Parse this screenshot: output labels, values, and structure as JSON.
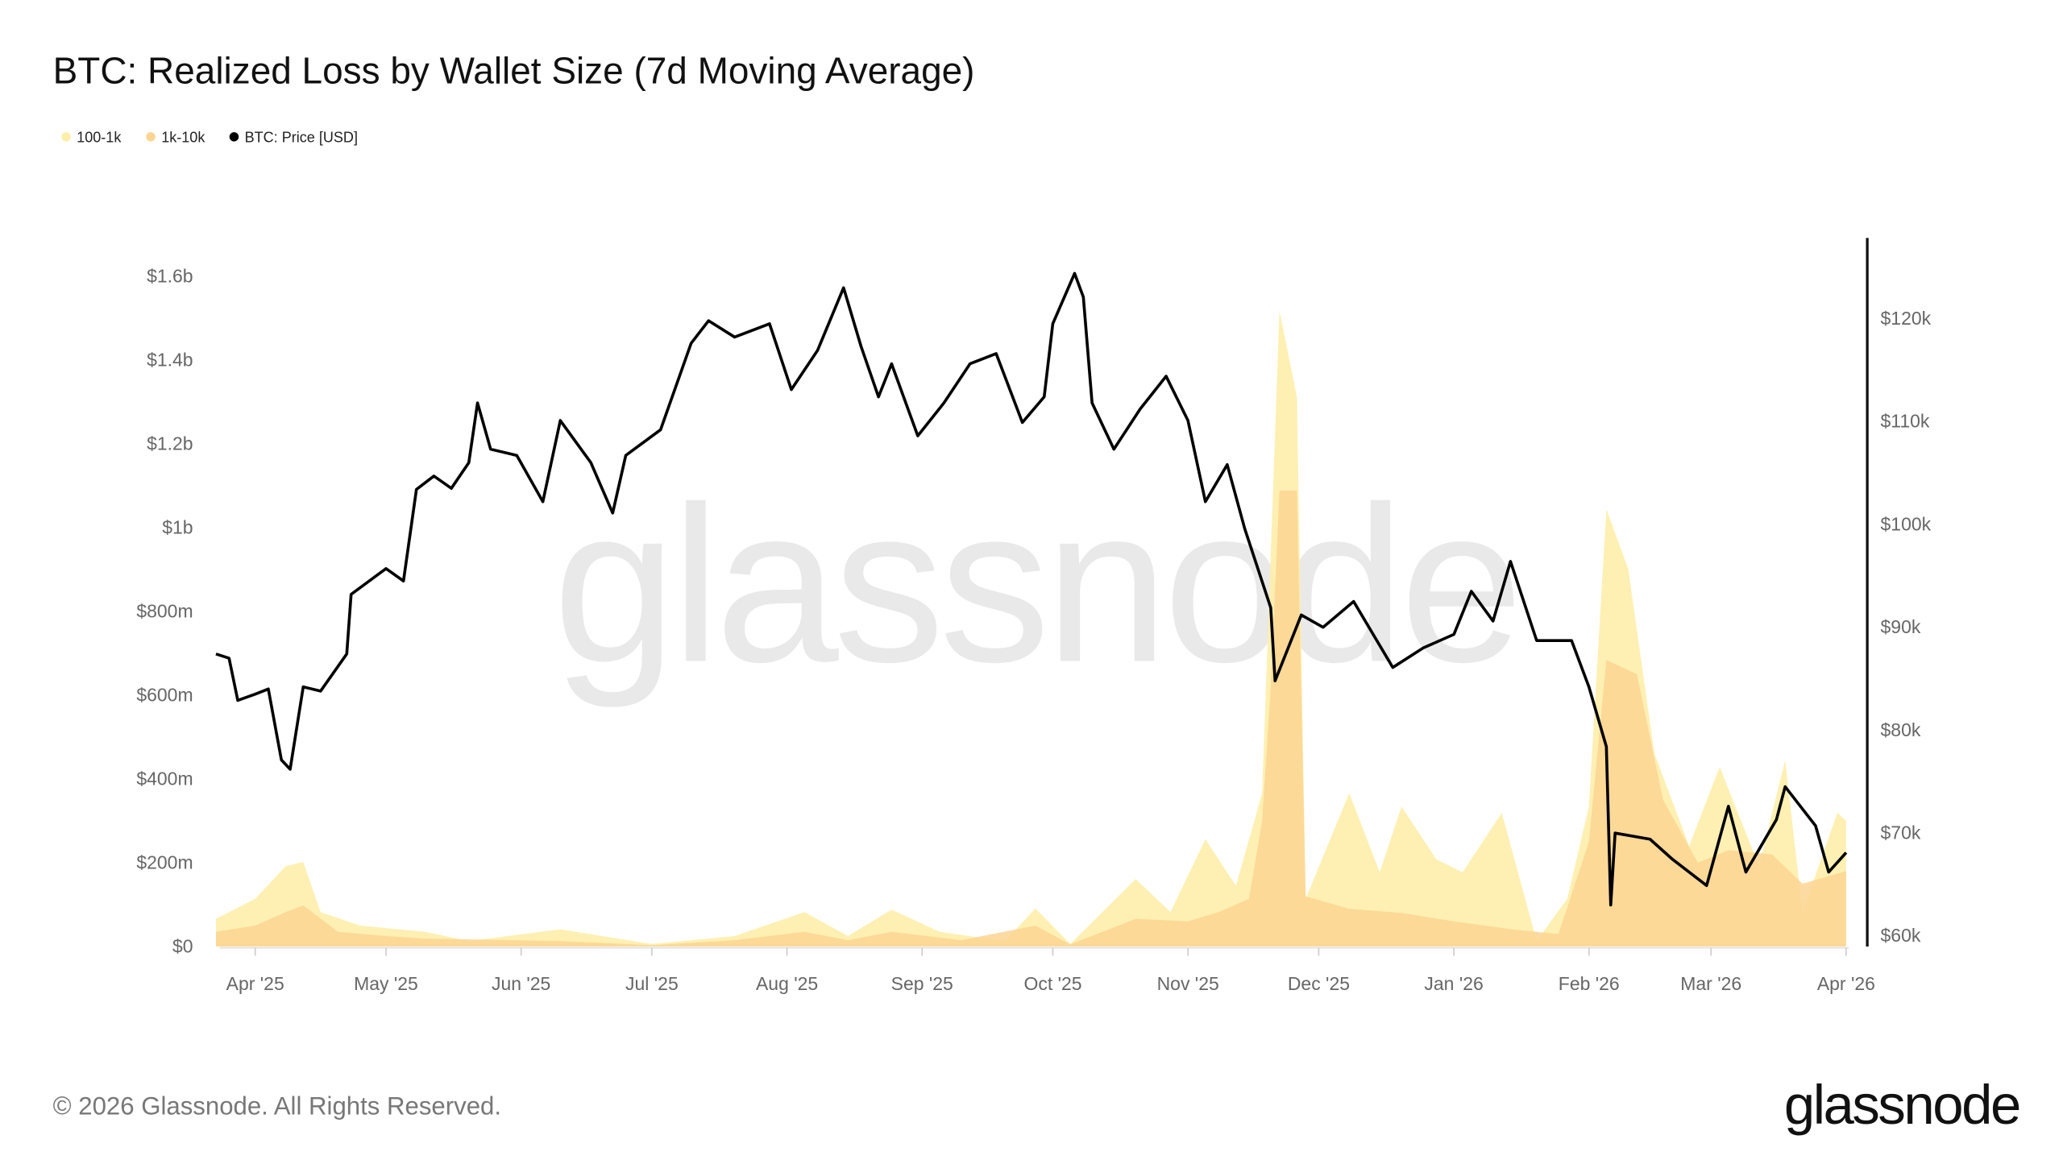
{
  "title": "BTC: Realized Loss by Wallet Size (7d Moving Average)",
  "footer": "© 2026 Glassnode. All Rights Reserved.",
  "logo_text": "glassnode",
  "watermark": "glassnode",
  "chart_data": {
    "type": "area",
    "title": "BTC: Realized Loss by Wallet Size (7d Moving Average)",
    "legend_position": "top-left",
    "grid": false,
    "x_range": [
      "2025-03-23",
      "2026-04-01"
    ],
    "x_tick_labels": [
      "Apr '25",
      "May '25",
      "Jun '25",
      "Jul '25",
      "Aug '25",
      "Sep '25",
      "Oct '25",
      "Nov '25",
      "Dec '25",
      "Jan '26",
      "Feb '26",
      "Mar '26",
      "Apr '26"
    ],
    "x_tick_dates": [
      "2025-04-01",
      "2025-05-01",
      "2025-06-01",
      "2025-07-01",
      "2025-08-01",
      "2025-09-01",
      "2025-10-01",
      "2025-11-01",
      "2025-12-01",
      "2026-01-01",
      "2026-02-01",
      "2026-03-01",
      "2026-04-01"
    ],
    "y_left": {
      "range_millions": [
        0,
        1600
      ],
      "tick_values": [
        0,
        200,
        400,
        600,
        800,
        1000,
        1200,
        1400,
        1600
      ],
      "tick_labels": [
        "$0",
        "$200m",
        "$400m",
        "$600m",
        "$800m",
        "$1b",
        "$1.2b",
        "$1.4b",
        "$1.6b"
      ]
    },
    "y_right": {
      "range": [
        60000,
        120000
      ],
      "tick_values": [
        60000,
        70000,
        80000,
        90000,
        100000,
        110000,
        120000
      ],
      "tick_labels": [
        "$60k",
        "$70k",
        "$80k",
        "$90k",
        "$100k",
        "$110k",
        "$120k"
      ]
    },
    "series": [
      {
        "name": "100-1k",
        "axis": "left",
        "color": "#fdeeaa",
        "kind": "area",
        "points": [
          [
            "2025-03-23",
            66
          ],
          [
            "2025-04-01",
            114
          ],
          [
            "2025-04-08",
            192
          ],
          [
            "2025-04-12",
            202
          ],
          [
            "2025-04-16",
            82
          ],
          [
            "2025-04-25",
            50
          ],
          [
            "2025-05-10",
            35
          ],
          [
            "2025-05-20",
            13
          ],
          [
            "2025-06-10",
            41
          ],
          [
            "2025-07-01",
            6
          ],
          [
            "2025-07-20",
            25
          ],
          [
            "2025-08-05",
            82
          ],
          [
            "2025-08-15",
            25
          ],
          [
            "2025-08-25",
            88
          ],
          [
            "2025-09-05",
            35
          ],
          [
            "2025-09-20",
            13
          ],
          [
            "2025-09-27",
            91
          ],
          [
            "2025-10-05",
            6
          ],
          [
            "2025-10-20",
            161
          ],
          [
            "2025-10-28",
            82
          ],
          [
            "2025-11-05",
            256
          ],
          [
            "2025-11-12",
            145
          ],
          [
            "2025-11-18",
            366
          ],
          [
            "2025-11-22",
            1517
          ],
          [
            "2025-11-26",
            1312
          ],
          [
            "2025-11-28",
            114
          ],
          [
            "2025-12-08",
            366
          ],
          [
            "2025-12-15",
            177
          ],
          [
            "2025-12-20",
            334
          ],
          [
            "2025-12-28",
            208
          ],
          [
            "2026-01-03",
            177
          ],
          [
            "2026-01-12",
            319
          ],
          [
            "2026-01-20",
            13
          ],
          [
            "2026-01-27",
            114
          ],
          [
            "2026-02-01",
            334
          ],
          [
            "2026-02-05",
            1044
          ],
          [
            "2026-02-10",
            902
          ],
          [
            "2026-02-16",
            461
          ],
          [
            "2026-02-24",
            240
          ],
          [
            "2026-03-03",
            429
          ],
          [
            "2026-03-12",
            192
          ],
          [
            "2026-03-18",
            445
          ],
          [
            "2026-03-22",
            82
          ],
          [
            "2026-03-30",
            319
          ],
          [
            "2026-04-01",
            300
          ]
        ]
      },
      {
        "name": "1k-10k",
        "axis": "left",
        "color": "#fcd592",
        "kind": "area",
        "points": [
          [
            "2025-03-23",
            35
          ],
          [
            "2025-04-01",
            50
          ],
          [
            "2025-04-08",
            82
          ],
          [
            "2025-04-12",
            98
          ],
          [
            "2025-04-20",
            35
          ],
          [
            "2025-05-01",
            25
          ],
          [
            "2025-05-10",
            19
          ],
          [
            "2025-06-10",
            13
          ],
          [
            "2025-07-01",
            3
          ],
          [
            "2025-07-20",
            15
          ],
          [
            "2025-08-05",
            35
          ],
          [
            "2025-08-15",
            15
          ],
          [
            "2025-08-25",
            35
          ],
          [
            "2025-09-10",
            15
          ],
          [
            "2025-09-27",
            50
          ],
          [
            "2025-10-05",
            5
          ],
          [
            "2025-10-20",
            66
          ],
          [
            "2025-11-01",
            60
          ],
          [
            "2025-11-08",
            82
          ],
          [
            "2025-11-15",
            114
          ],
          [
            "2025-11-18",
            300
          ],
          [
            "2025-11-20",
            618
          ],
          [
            "2025-11-22",
            1088
          ],
          [
            "2025-11-26",
            1088
          ],
          [
            "2025-11-28",
            120
          ],
          [
            "2025-12-08",
            90
          ],
          [
            "2025-12-20",
            80
          ],
          [
            "2026-01-01",
            60
          ],
          [
            "2026-01-15",
            40
          ],
          [
            "2026-01-25",
            30
          ],
          [
            "2026-02-01",
            250
          ],
          [
            "2026-02-05",
            684
          ],
          [
            "2026-02-12",
            650
          ],
          [
            "2026-02-18",
            350
          ],
          [
            "2026-02-26",
            200
          ],
          [
            "2026-03-05",
            230
          ],
          [
            "2026-03-15",
            220
          ],
          [
            "2026-03-22",
            150
          ],
          [
            "2026-04-01",
            180
          ]
        ]
      },
      {
        "name": "BTC: Price [USD]",
        "axis": "right",
        "color": "#000000",
        "kind": "line",
        "points": [
          [
            "2025-03-23",
            87400
          ],
          [
            "2025-03-26",
            87000
          ],
          [
            "2025-03-28",
            82900
          ],
          [
            "2025-04-01",
            83500
          ],
          [
            "2025-04-04",
            84000
          ],
          [
            "2025-04-07",
            77100
          ],
          [
            "2025-04-09",
            76200
          ],
          [
            "2025-04-12",
            84200
          ],
          [
            "2025-04-16",
            83800
          ],
          [
            "2025-04-22",
            87400
          ],
          [
            "2025-04-23",
            93200
          ],
          [
            "2025-05-01",
            95700
          ],
          [
            "2025-05-05",
            94500
          ],
          [
            "2025-05-08",
            103400
          ],
          [
            "2025-05-12",
            104700
          ],
          [
            "2025-05-16",
            103500
          ],
          [
            "2025-05-20",
            106000
          ],
          [
            "2025-05-22",
            111800
          ],
          [
            "2025-05-25",
            107300
          ],
          [
            "2025-05-31",
            106700
          ],
          [
            "2025-06-06",
            102200
          ],
          [
            "2025-06-10",
            110100
          ],
          [
            "2025-06-17",
            106000
          ],
          [
            "2025-06-22",
            101100
          ],
          [
            "2025-06-25",
            106700
          ],
          [
            "2025-07-03",
            109200
          ],
          [
            "2025-07-10",
            117600
          ],
          [
            "2025-07-14",
            119800
          ],
          [
            "2025-07-20",
            118200
          ],
          [
            "2025-07-28",
            119500
          ],
          [
            "2025-08-02",
            113100
          ],
          [
            "2025-08-08",
            116900
          ],
          [
            "2025-08-14",
            123000
          ],
          [
            "2025-08-18",
            117300
          ],
          [
            "2025-08-22",
            112400
          ],
          [
            "2025-08-25",
            115600
          ],
          [
            "2025-08-31",
            108600
          ],
          [
            "2025-09-06",
            111800
          ],
          [
            "2025-09-12",
            115600
          ],
          [
            "2025-09-18",
            116600
          ],
          [
            "2025-09-24",
            109900
          ],
          [
            "2025-09-29",
            112400
          ],
          [
            "2025-10-01",
            119500
          ],
          [
            "2025-10-06",
            124400
          ],
          [
            "2025-10-08",
            122100
          ],
          [
            "2025-10-10",
            111800
          ],
          [
            "2025-10-15",
            107300
          ],
          [
            "2025-10-21",
            111200
          ],
          [
            "2025-10-27",
            114400
          ],
          [
            "2025-11-01",
            110100
          ],
          [
            "2025-11-05",
            102200
          ],
          [
            "2025-11-10",
            105800
          ],
          [
            "2025-11-14",
            99600
          ],
          [
            "2025-11-20",
            91900
          ],
          [
            "2025-11-21",
            84800
          ],
          [
            "2025-11-27",
            91200
          ],
          [
            "2025-12-02",
            90000
          ],
          [
            "2025-12-09",
            92500
          ],
          [
            "2025-12-18",
            86100
          ],
          [
            "2025-12-25",
            88000
          ],
          [
            "2026-01-01",
            89300
          ],
          [
            "2026-01-05",
            93500
          ],
          [
            "2026-01-10",
            90600
          ],
          [
            "2026-01-14",
            96400
          ],
          [
            "2026-01-20",
            88700
          ],
          [
            "2026-01-28",
            88700
          ],
          [
            "2026-02-01",
            84200
          ],
          [
            "2026-02-05",
            78400
          ],
          [
            "2026-02-06",
            63000
          ],
          [
            "2026-02-07",
            70000
          ],
          [
            "2026-02-15",
            69400
          ],
          [
            "2026-02-20",
            67500
          ],
          [
            "2026-02-28",
            64900
          ],
          [
            "2026-03-05",
            72600
          ],
          [
            "2026-03-09",
            66200
          ],
          [
            "2026-03-16",
            71300
          ],
          [
            "2026-03-18",
            74500
          ],
          [
            "2026-03-25",
            70700
          ],
          [
            "2026-03-28",
            66200
          ],
          [
            "2026-04-01",
            68100
          ]
        ]
      }
    ]
  }
}
